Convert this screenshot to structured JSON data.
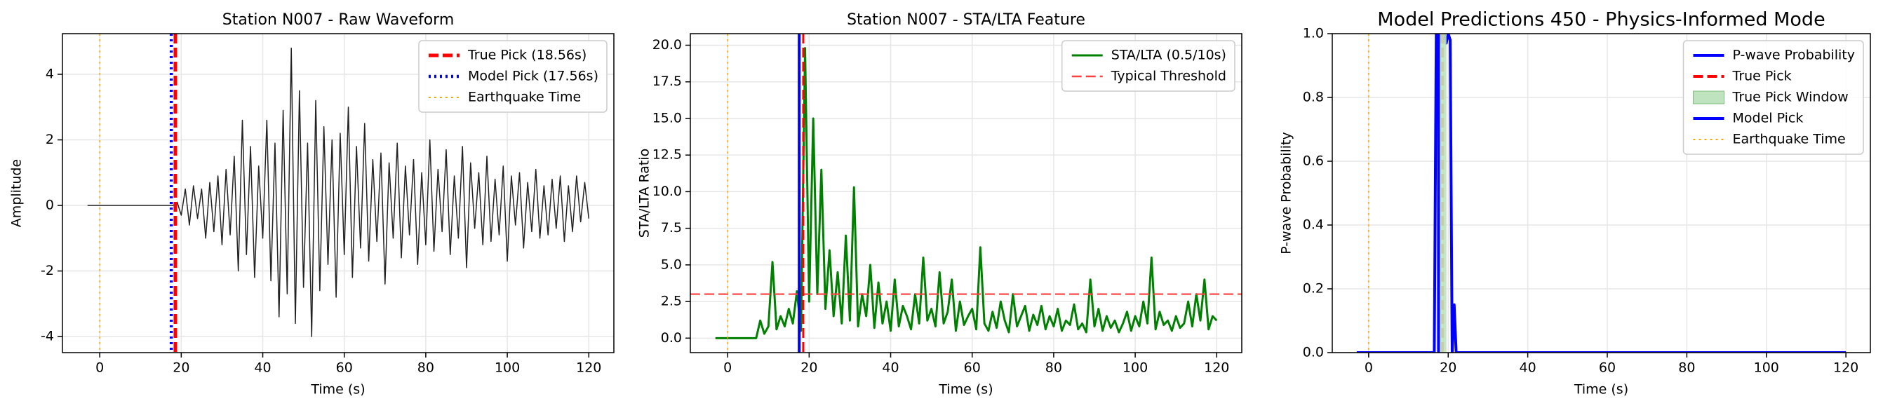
{
  "chart_data": [
    {
      "type": "line",
      "title": "Station N007 - Raw Waveform",
      "xlabel": "Time (s)",
      "ylabel": "Amplitude",
      "xlim": [
        -9.15,
        126.15
      ],
      "xticks": [
        0,
        20,
        40,
        60,
        80,
        100,
        120
      ],
      "ylim": [
        -4.49,
        5.24
      ],
      "yticks": [
        -4,
        -2,
        0,
        2,
        4
      ],
      "grid": true,
      "legend": "upper right",
      "series": [
        {
          "kind": "line",
          "color": "#222222",
          "width": 1.5,
          "style": "solid",
          "x": [
            -3,
            18,
            19,
            20,
            21,
            22,
            23,
            24,
            25,
            26,
            27,
            28,
            29,
            30,
            31,
            32,
            33,
            34,
            35,
            36,
            37,
            38,
            39,
            40,
            41,
            42,
            43,
            44,
            45,
            46,
            47,
            48,
            49,
            50,
            51,
            52,
            53,
            54,
            55,
            56,
            57,
            58,
            59,
            60,
            61,
            62,
            63,
            64,
            65,
            66,
            67,
            68,
            69,
            70,
            71,
            72,
            73,
            74,
            75,
            76,
            77,
            78,
            79,
            80,
            81,
            82,
            83,
            84,
            85,
            86,
            87,
            88,
            89,
            90,
            91,
            92,
            93,
            94,
            95,
            96,
            97,
            98,
            99,
            100,
            101,
            102,
            103,
            104,
            105,
            106,
            107,
            108,
            109,
            110,
            111,
            112,
            113,
            114,
            115,
            116,
            117,
            118,
            119,
            120
          ],
          "values": [
            0,
            0,
            0.1,
            -0.3,
            0.5,
            -0.6,
            0.6,
            -0.4,
            0.5,
            -1.0,
            0.7,
            -0.8,
            0.9,
            -1.2,
            1.1,
            -0.9,
            1.5,
            -2.0,
            2.6,
            -1.5,
            1.8,
            -2.2,
            1.2,
            -1.0,
            2.6,
            -2.3,
            1.9,
            -3.4,
            2.9,
            -2.7,
            4.8,
            -3.6,
            3.5,
            -2.5,
            1.9,
            -4.0,
            3.2,
            -2.6,
            2.4,
            -1.8,
            2.0,
            -2.8,
            2.2,
            -1.5,
            3.0,
            -2.2,
            1.8,
            -1.3,
            2.5,
            -1.7,
            1.4,
            -1.1,
            1.6,
            -2.4,
            1.3,
            -1.0,
            1.9,
            -1.6,
            1.2,
            -0.9,
            1.4,
            -1.8,
            1.0,
            -1.2,
            2.0,
            -1.4,
            1.1,
            -0.8,
            1.7,
            -1.5,
            0.9,
            -1.0,
            1.8,
            -1.9,
            1.3,
            -0.7,
            1.0,
            -1.2,
            1.5,
            -1.1,
            0.8,
            -0.9,
            1.2,
            -1.7,
            0.9,
            -0.6,
            1.0,
            -1.3,
            0.7,
            -0.8,
            1.1,
            -1.0,
            0.6,
            -0.9,
            0.8,
            -0.7,
            0.9,
            -1.1,
            0.6,
            -0.8,
            0.9,
            -0.5,
            0.7,
            -0.4
          ]
        },
        {
          "kind": "vline",
          "name": "True Pick (18.56s)",
          "x": 18.56,
          "color": "#ff0000",
          "width": 5,
          "style": "dashed"
        },
        {
          "kind": "vline",
          "name": "Model Pick (17.56s)",
          "x": 17.56,
          "color": "#0000ff",
          "width": 4.5,
          "style": "dotted"
        },
        {
          "kind": "vline",
          "name": "Earthquake Time",
          "x": 0,
          "color": "#ffa500",
          "width": 2,
          "style": "dotted"
        }
      ]
    },
    {
      "type": "line",
      "title": "Station N007 - STA/LTA Feature",
      "xlabel": "Time (s)",
      "ylabel": "STA/LTA Ratio",
      "xlim": [
        -9.15,
        126.15
      ],
      "xticks": [
        0,
        20,
        40,
        60,
        80,
        100,
        120
      ],
      "ylim": [
        -0.99,
        20.79
      ],
      "yticks": [
        {
          "value": 0,
          "label": "0.0"
        },
        {
          "value": 2.5,
          "label": "2.5"
        },
        {
          "value": 5,
          "label": "5.0"
        },
        {
          "value": 7.5,
          "label": "7.5"
        },
        {
          "value": 10,
          "label": "10.0"
        },
        {
          "value": 12.5,
          "label": "12.5"
        },
        {
          "value": 15,
          "label": "15.0"
        },
        {
          "value": 17.5,
          "label": "17.5"
        },
        {
          "value": 20,
          "label": "20.0"
        }
      ],
      "grid": true,
      "legend": "upper right",
      "series": [
        {
          "kind": "line",
          "name": "STA/LTA (0.5/10s)",
          "color": "#008000",
          "width": 3,
          "style": "solid",
          "x": [
            -3,
            7,
            8,
            9,
            10,
            11,
            12,
            13,
            14,
            15,
            16,
            17,
            18,
            19,
            20,
            21,
            22,
            23,
            24,
            25,
            26,
            27,
            28,
            29,
            30,
            31,
            32,
            33,
            34,
            35,
            36,
            37,
            38,
            39,
            40,
            41,
            42,
            43,
            44,
            45,
            46,
            47,
            48,
            49,
            50,
            51,
            52,
            53,
            54,
            55,
            56,
            57,
            58,
            59,
            60,
            61,
            62,
            63,
            64,
            65,
            66,
            67,
            68,
            69,
            70,
            71,
            72,
            73,
            74,
            75,
            76,
            77,
            78,
            79,
            80,
            81,
            82,
            83,
            84,
            85,
            86,
            87,
            88,
            89,
            90,
            91,
            92,
            93,
            94,
            95,
            96,
            97,
            98,
            99,
            100,
            101,
            102,
            103,
            104,
            105,
            106,
            107,
            108,
            109,
            110,
            111,
            112,
            113,
            114,
            115,
            116,
            117,
            118,
            119,
            120
          ],
          "values": [
            0,
            0,
            1.2,
            0.3,
            0.8,
            5.2,
            0.6,
            1.5,
            0.8,
            2.0,
            1.0,
            3.2,
            0.5,
            19.8,
            2.5,
            15.0,
            3.0,
            11.5,
            2.0,
            6.0,
            1.5,
            4.5,
            1.0,
            7.0,
            1.2,
            10.3,
            0.8,
            3.0,
            1.5,
            5.0,
            0.7,
            3.8,
            1.0,
            2.5,
            0.5,
            4.0,
            0.8,
            2.2,
            1.5,
            0.6,
            3.0,
            1.0,
            5.5,
            1.2,
            2.0,
            0.8,
            4.5,
            1.0,
            1.8,
            4.0,
            0.5,
            2.5,
            0.9,
            1.5,
            2.0,
            0.6,
            6.2,
            1.0,
            0.5,
            1.8,
            0.7,
            2.5,
            1.2,
            0.4,
            3.0,
            0.8,
            1.5,
            2.2,
            0.5,
            1.6,
            0.9,
            2.2,
            0.6,
            1.5,
            0.8,
            2.0,
            0.5,
            1.2,
            0.9,
            2.3,
            0.6,
            1.0,
            0.4,
            4.0,
            0.8,
            2.0,
            0.5,
            1.5,
            0.7,
            1.2,
            0.4,
            1.0,
            1.8,
            0.5,
            1.5,
            0.8,
            2.5,
            1.0,
            5.5,
            0.6,
            1.8,
            0.9,
            1.2,
            0.5,
            1.5,
            0.7,
            1.0,
            2.5,
            0.8,
            3.0,
            1.2,
            4.0,
            0.6,
            1.5,
            1.2
          ]
        },
        {
          "kind": "hline",
          "name": "Typical Threshold",
          "y": 3,
          "color": "#ff4040",
          "width": 2.5,
          "style": "dashed"
        },
        {
          "kind": "vline",
          "x": 17.56,
          "color": "#0000ff",
          "width": 4,
          "style": "solid"
        },
        {
          "kind": "vline",
          "x": 18.56,
          "color": "#ff0000",
          "width": 3,
          "style": "dashed"
        },
        {
          "kind": "vline",
          "x": 0,
          "color": "#ffa500",
          "width": 2,
          "style": "dotted"
        }
      ]
    },
    {
      "type": "line",
      "title": "Model Predictions 450 - Physics-Informed Mode",
      "xlabel": "Time (s)",
      "ylabel": "P-wave Probability",
      "xlim": [
        -9.15,
        126.15
      ],
      "xticks": [
        0,
        20,
        40,
        60,
        80,
        100,
        120
      ],
      "ylim": [
        0,
        1
      ],
      "yticks": [
        {
          "value": 0,
          "label": "0.0"
        },
        {
          "value": 0.2,
          "label": "0.2"
        },
        {
          "value": 0.4,
          "label": "0.4"
        },
        {
          "value": 0.6,
          "label": "0.6"
        },
        {
          "value": 0.8,
          "label": "0.8"
        },
        {
          "value": 1,
          "label": "1.0"
        }
      ],
      "grid": true,
      "legend": "upper right",
      "series": [
        {
          "kind": "line",
          "name": "P-wave Probability",
          "color": "#0000ff",
          "width": 4,
          "style": "solid",
          "x": [
            -3,
            16.5,
            17,
            17.5,
            18,
            18.5,
            19,
            19.5,
            20,
            20.5,
            21,
            21.5,
            22,
            120
          ],
          "values": [
            0,
            0,
            1,
            0.95,
            1,
            0.98,
            1,
            0.97,
            1,
            0.98,
            0,
            0.15,
            0,
            0
          ]
        },
        {
          "kind": "vline",
          "name": "True Pick",
          "x": 18.56,
          "color": "#ff0000",
          "width": 4,
          "style": "dashed"
        },
        {
          "kind": "span",
          "name": "True Pick Window",
          "x": [
            17.56,
            19.56
          ],
          "color": "#bfe3bf"
        },
        {
          "kind": "vline",
          "name": "Model Pick",
          "x": 17.56,
          "color": "#0000ff",
          "width": 4,
          "style": "solid"
        },
        {
          "kind": "vline",
          "name": "Earthquake Time",
          "x": 0,
          "color": "#ffa500",
          "width": 2,
          "style": "dotted"
        }
      ]
    }
  ]
}
